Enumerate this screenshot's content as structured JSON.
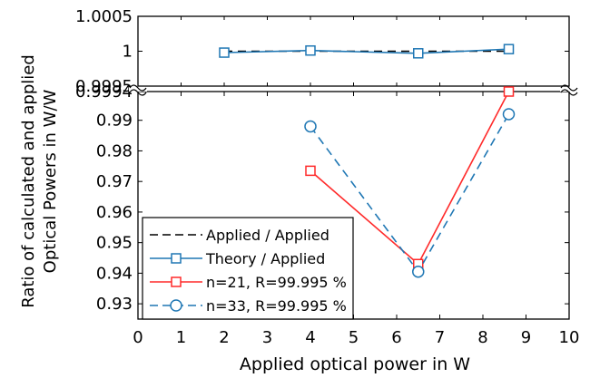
{
  "chart_data": {
    "type": "line",
    "xlabel": "Applied optical power in W",
    "ylabel_line1": "Ratio of calculated and applied",
    "ylabel_line2": "Optical Powers in W/W",
    "xlim": [
      0,
      10
    ],
    "xticks": [
      "0",
      "1",
      "2",
      "3",
      "4",
      "5",
      "6",
      "7",
      "8",
      "9",
      "10"
    ],
    "broken_axis": true,
    "upper_panel": {
      "ylim": [
        0.9995,
        1.0005
      ],
      "yticks": [
        "1.0005",
        "1",
        "0.9995"
      ]
    },
    "lower_panel": {
      "ylim": [
        0.925,
        0.9994
      ],
      "yticks": [
        "0.9994",
        "0.99",
        "0.98",
        "0.97",
        "0.96",
        "0.95",
        "0.94",
        "0.93"
      ]
    },
    "grid": false,
    "legend_placement": "bottom-left",
    "series": [
      {
        "name": "Applied / Applied",
        "panel": "upper",
        "color": "#000000",
        "dash": "dashed",
        "marker": "none",
        "x": [
          2,
          8.6
        ],
        "y": [
          1.0,
          1.0
        ]
      },
      {
        "name": "Theory  / Applied",
        "panel": "upper",
        "color": "#1f77b4",
        "dash": "solid",
        "marker": "square",
        "x": [
          2,
          4,
          6.5,
          8.6
        ],
        "y": [
          0.99998,
          1.00001,
          0.99997,
          1.00003
        ]
      },
      {
        "name": "n=21, R=99.995 %",
        "panel": "lower",
        "color": "#ff2a2a",
        "dash": "solid",
        "marker": "square",
        "x": [
          4,
          6.5,
          8.6
        ],
        "y": [
          0.9735,
          0.943,
          0.9994
        ]
      },
      {
        "name": "n=33, R=99.995 %",
        "panel": "lower",
        "color": "#1f77b4",
        "dash": "dashed",
        "marker": "circle",
        "x": [
          4,
          6.5,
          8.6
        ],
        "y": [
          0.988,
          0.9405,
          0.992
        ]
      }
    ]
  }
}
